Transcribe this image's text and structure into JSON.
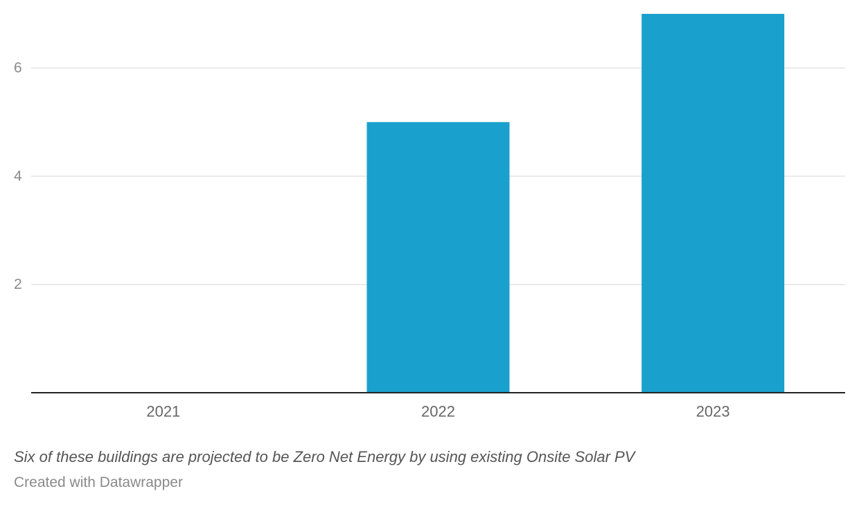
{
  "chart_data": {
    "type": "bar",
    "categories": [
      "2021",
      "2022",
      "2023"
    ],
    "values": [
      0,
      5,
      7
    ],
    "y_ticks": [
      2,
      4,
      6
    ],
    "ylim": [
      0,
      7
    ],
    "title": "",
    "xlabel": "",
    "ylabel": "",
    "grid": true,
    "bar_color": "#1aa0cc",
    "gridline_color": "#e3e3e3",
    "baseline_color": "#222222"
  },
  "footer": {
    "note": "Six of these buildings are projected to be Zero Net Energy by using existing Onsite Solar PV",
    "credit": "Created with Datawrapper"
  }
}
